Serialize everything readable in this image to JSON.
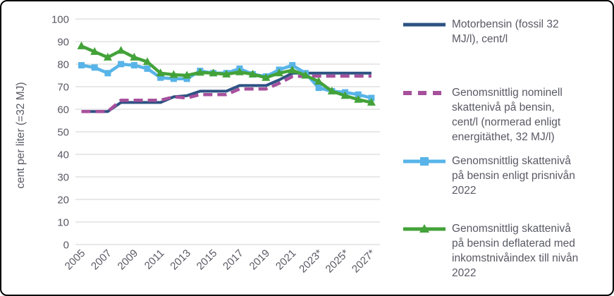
{
  "figure": {
    "background_color": "#ffffff",
    "border_color": "#000000",
    "gridline_color": "#d9d9d9",
    "text_color": "#595965"
  },
  "chart_data": {
    "type": "line",
    "title": "",
    "xlabel": "",
    "ylabel": "cent per liter (=32 MJ)",
    "ylim": [
      0,
      100
    ],
    "y_tick_step": 10,
    "y_tick_labels": [
      "0",
      "10",
      "20",
      "30",
      "40",
      "50",
      "60",
      "70",
      "80",
      "90",
      "100"
    ],
    "x": [
      2005,
      2006,
      2007,
      2008,
      2009,
      2010,
      2011,
      2012,
      2013,
      2014,
      2015,
      2016,
      2017,
      2018,
      2019,
      2020,
      2021,
      2022,
      2023,
      2024,
      2025,
      2026,
      2027
    ],
    "x_tick_labels": [
      "2005",
      "2007",
      "2009",
      "2011",
      "2013",
      "2015",
      "2017",
      "2019",
      "2021",
      "2023*",
      "2025*",
      "2027*"
    ],
    "grid": "horizontal",
    "legend_position": "right",
    "series": [
      {
        "name": "Motorbensin (fossil 32 MJ/l), cent/l",
        "color": "#2E5283",
        "style": "solid",
        "marker": "none",
        "values": [
          59,
          59,
          59,
          63,
          63,
          63,
          63,
          65.5,
          66,
          68,
          68,
          68,
          70.5,
          70.5,
          70.5,
          73,
          76,
          76,
          76,
          76,
          76,
          76,
          76
        ]
      },
      {
        "name": "Genomsnittlig nominell skattenivå på bensin, cent/l (normerad enligt energitäthet, 32 MJ/l)",
        "color": "#A6509C",
        "style": "dashed",
        "marker": "none",
        "values": [
          59,
          59,
          59,
          64,
          64,
          64,
          64,
          65.5,
          65,
          66.5,
          66.5,
          66.5,
          69,
          69,
          69,
          71.5,
          74.5,
          74.7,
          74.7,
          74.7,
          74.7,
          74.7,
          74.7
        ]
      },
      {
        "name": "Genomsnittlig skattenivå på bensin enligt prisnivån 2022",
        "color": "#58B4E8",
        "style": "solid",
        "marker": "square",
        "values": [
          79.5,
          78.5,
          76,
          80,
          79.5,
          78,
          74,
          73.5,
          73.5,
          77,
          76,
          76,
          78,
          75.5,
          74.5,
          77.5,
          79.5,
          76,
          69.5,
          68,
          67.5,
          66.5,
          65
        ]
      },
      {
        "name": "Genomsnittlig skattenivå på bensin deflaterad med inkomstnivåindex till nivån 2022",
        "color": "#43A239",
        "style": "solid",
        "marker": "triangle",
        "values": [
          88,
          85.5,
          83,
          86,
          83,
          81,
          76,
          75.3,
          75,
          76.3,
          76,
          75.5,
          76.5,
          75.5,
          74,
          76,
          77.3,
          75,
          72.3,
          68,
          66,
          64.3,
          63
        ]
      }
    ]
  },
  "legend": {
    "items": [
      {
        "label": "Motorbensin (fossil 32\nMJ/l), cent/l"
      },
      {
        "label": "Genomsnittlig nominell\nskattenivå på bensin,\ncent/l (normerad enligt\nenergitäthet, 32 MJ/l)"
      },
      {
        "label": "Genomsnittlig skattenivå\npå bensin enligt prisnivån\n2022"
      },
      {
        "label": "Genomsnittlig skattenivå\npå bensin deflaterad med\ninkomstnivåindex till nivån\n2022"
      }
    ]
  }
}
